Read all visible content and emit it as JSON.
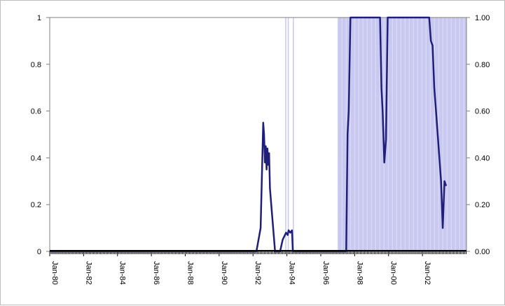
{
  "chart_data": {
    "type": "line",
    "title": "",
    "xlabel": "",
    "ylabel": "",
    "x_range": [
      1980.0,
      2004.6
    ],
    "ylim": [
      0,
      1
    ],
    "y_ticks_left": [
      "0",
      "0.2",
      "0.4",
      "0.6",
      "0.8",
      "1"
    ],
    "y_ticks_right": [
      "0.00",
      "0.20",
      "0.40",
      "0.60",
      "0.80",
      "1.00"
    ],
    "x_ticks": [
      {
        "x": 1980,
        "label": "Jan-80"
      },
      {
        "x": 1982,
        "label": "Jan-82"
      },
      {
        "x": 1984,
        "label": "Jan-84"
      },
      {
        "x": 1986,
        "label": "Jan-86"
      },
      {
        "x": 1988,
        "label": "Jan-88"
      },
      {
        "x": 1990,
        "label": "Jan-90"
      },
      {
        "x": 1992,
        "label": "Jan-92"
      },
      {
        "x": 1994,
        "label": "Jan-94"
      },
      {
        "x": 1996,
        "label": "Jan-96"
      },
      {
        "x": 1998,
        "label": "Jan-98"
      },
      {
        "x": 2000,
        "label": "Jan-00"
      },
      {
        "x": 2002,
        "label": "Jan-02"
      }
    ],
    "grid": false,
    "colors": {
      "line": "#1f1f7a",
      "shade": "#c8c8f0",
      "shade_line": "#b8b8e6",
      "axis": "#808080"
    },
    "shaded_regions": [
      {
        "start": 1993.9,
        "end": 1993.95
      },
      {
        "start": 1994.05,
        "end": 1994.1
      },
      {
        "start": 1994.35,
        "end": 1994.4
      },
      {
        "start": 1997.0,
        "end": 2004.6
      }
    ],
    "series": [
      {
        "values": [
          [
            1980.0,
            0.0
          ],
          [
            1992.2,
            0.0
          ],
          [
            1992.45,
            0.1
          ],
          [
            1992.6,
            0.55
          ],
          [
            1992.65,
            0.5
          ],
          [
            1992.7,
            0.38
          ],
          [
            1992.75,
            0.45
          ],
          [
            1992.8,
            0.35
          ],
          [
            1992.85,
            0.44
          ],
          [
            1992.9,
            0.37
          ],
          [
            1992.95,
            0.42
          ],
          [
            1993.0,
            0.27
          ],
          [
            1993.1,
            0.18
          ],
          [
            1993.3,
            0.0
          ],
          [
            1993.6,
            0.0
          ],
          [
            1993.75,
            0.05
          ],
          [
            1993.95,
            0.08
          ],
          [
            1994.05,
            0.07
          ],
          [
            1994.1,
            0.09
          ],
          [
            1994.2,
            0.08
          ],
          [
            1994.3,
            0.09
          ],
          [
            1994.35,
            0.0
          ],
          [
            1997.5,
            0.0
          ],
          [
            1997.58,
            0.5
          ],
          [
            1997.65,
            0.6
          ],
          [
            1997.75,
            1.0
          ],
          [
            1999.5,
            1.0
          ],
          [
            1999.58,
            0.7
          ],
          [
            1999.65,
            0.6
          ],
          [
            1999.75,
            0.38
          ],
          [
            1999.85,
            0.48
          ],
          [
            1999.95,
            1.0
          ],
          [
            2002.4,
            1.0
          ],
          [
            2002.5,
            0.9
          ],
          [
            2002.6,
            0.88
          ],
          [
            2002.7,
            0.7
          ],
          [
            2002.8,
            0.6
          ],
          [
            2002.95,
            0.45
          ],
          [
            2003.1,
            0.3
          ],
          [
            2003.2,
            0.1
          ],
          [
            2003.3,
            0.3
          ],
          [
            2003.4,
            0.28
          ]
        ]
      }
    ]
  }
}
